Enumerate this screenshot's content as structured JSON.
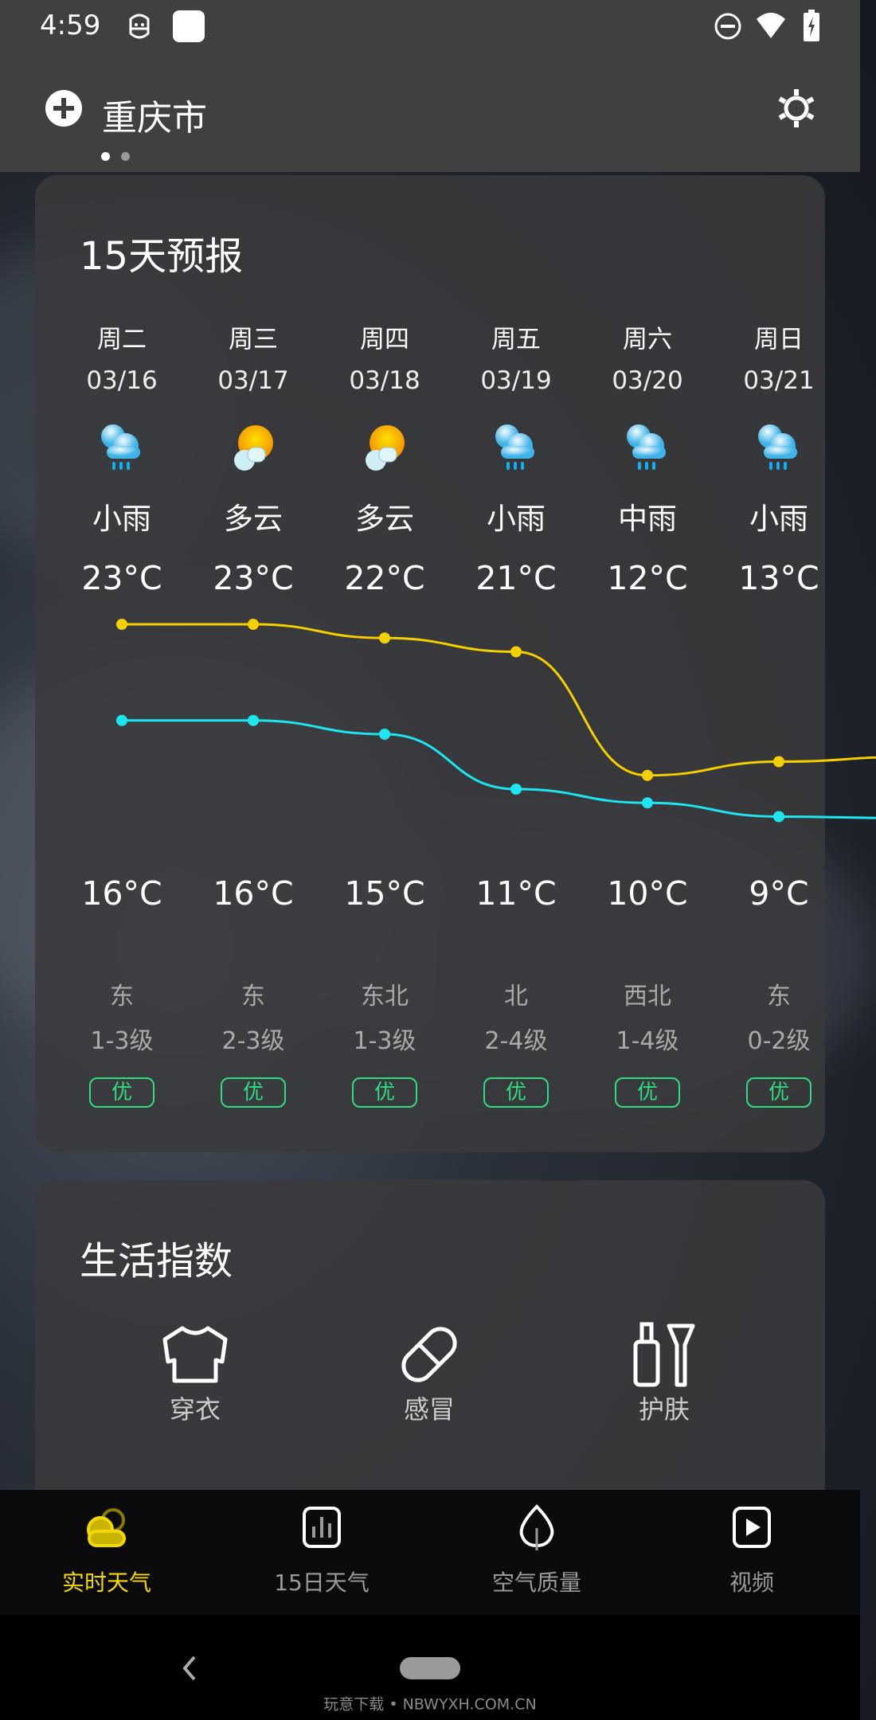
{
  "status_bar": {
    "time": "4:59",
    "icons": [
      "android-debug-icon",
      "notification-square-icon",
      "do-not-disturb-icon",
      "wifi-icon",
      "battery-charging-icon"
    ]
  },
  "header": {
    "city": "重庆市",
    "add_icon": "plus-circle-icon",
    "settings_icon": "gear-icon",
    "page_count": 2,
    "active_page": 1
  },
  "forecast": {
    "title": "15天预报",
    "days": [
      {
        "weekday": "周二",
        "date": "03/16",
        "icon": "light-rain-icon",
        "condition": "小雨",
        "high": "23°C",
        "low": "16°C",
        "wind_dir": "东",
        "wind_level": "1-3级",
        "aqi": "优"
      },
      {
        "weekday": "周三",
        "date": "03/17",
        "icon": "partly-cloudy-icon",
        "condition": "多云",
        "high": "23°C",
        "low": "16°C",
        "wind_dir": "东",
        "wind_level": "2-3级",
        "aqi": "优"
      },
      {
        "weekday": "周四",
        "date": "03/18",
        "icon": "partly-cloudy-icon",
        "condition": "多云",
        "high": "22°C",
        "low": "15°C",
        "wind_dir": "东北",
        "wind_level": "1-3级",
        "aqi": "优"
      },
      {
        "weekday": "周五",
        "date": "03/19",
        "icon": "light-rain-icon",
        "condition": "小雨",
        "high": "21°C",
        "low": "11°C",
        "wind_dir": "北",
        "wind_level": "2-4级",
        "aqi": "优"
      },
      {
        "weekday": "周六",
        "date": "03/20",
        "icon": "moderate-rain-icon",
        "condition": "中雨",
        "high": "12°C",
        "low": "10°C",
        "wind_dir": "西北",
        "wind_level": "1-4级",
        "aqi": "优"
      },
      {
        "weekday": "周日",
        "date": "03/21",
        "icon": "light-rain-icon",
        "condition": "小雨",
        "high": "13°C",
        "low": "9°C",
        "wind_dir": "东",
        "wind_level": "0-2级",
        "aqi": "优"
      }
    ],
    "colors": {
      "high_line": "#f5d000",
      "low_line": "#1ee6f0",
      "aqi_good": "#2fdc7f"
    }
  },
  "chart_data": {
    "type": "line",
    "categories": [
      "03/16",
      "03/17",
      "03/18",
      "03/19",
      "03/20",
      "03/21"
    ],
    "series": [
      {
        "values": [
          23,
          23,
          22,
          21,
          12,
          13
        ],
        "color": "#f5d000"
      },
      {
        "values": [
          16,
          16,
          15,
          11,
          10,
          9
        ],
        "color": "#1ee6f0"
      }
    ]
  },
  "life": {
    "title": "生活指数",
    "items": [
      {
        "label": "穿衣",
        "icon": "shirt-icon"
      },
      {
        "label": "感冒",
        "icon": "pill-icon"
      },
      {
        "label": "护肤",
        "icon": "skincare-icon"
      }
    ]
  },
  "bottom_nav": {
    "active_color": "#f5d800",
    "items": [
      {
        "label": "实时天气",
        "icon": "weather-cloud-sun-icon",
        "active": true
      },
      {
        "label": "15日天气",
        "icon": "bar-chart-icon",
        "active": false
      },
      {
        "label": "空气质量",
        "icon": "leaf-icon",
        "active": false
      },
      {
        "label": "视频",
        "icon": "play-video-icon",
        "active": false
      }
    ]
  },
  "watermark": "玩意下载 • NBWYXH.COM.CN"
}
